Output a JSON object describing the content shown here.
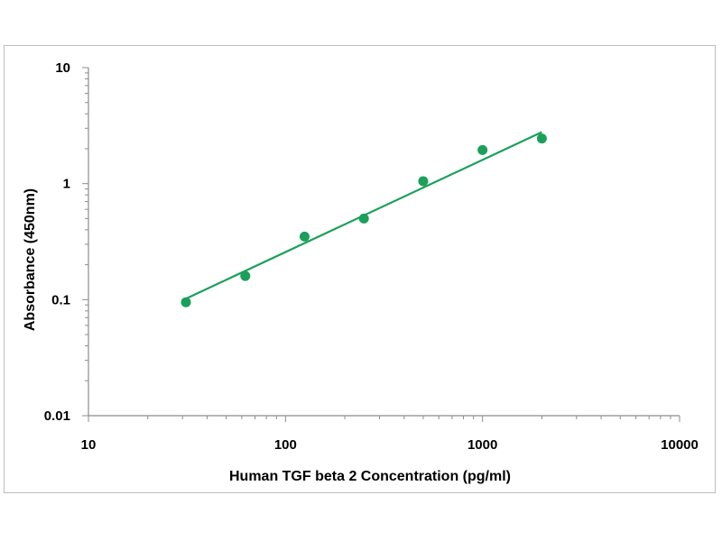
{
  "chart_data": {
    "type": "scatter",
    "title": "",
    "xlabel": "Human TGF beta 2 Concentration (pg/ml)",
    "ylabel": "Absorbance (450nm)",
    "x_scale": "log",
    "y_scale": "log",
    "xlim": [
      10,
      10000
    ],
    "ylim": [
      0.01,
      10
    ],
    "x_ticks": [
      {
        "value": 10,
        "label": "10"
      },
      {
        "value": 100,
        "label": "100"
      },
      {
        "value": 1000,
        "label": "1000"
      },
      {
        "value": 10000,
        "label": "10000"
      }
    ],
    "y_ticks": [
      {
        "value": 10,
        "label": "10"
      },
      {
        "value": 1,
        "label": "1"
      },
      {
        "value": 0.1,
        "label": "0.1"
      },
      {
        "value": 0.01,
        "label": "0.01"
      }
    ],
    "grid": false,
    "legend": "none",
    "series": [
      {
        "x": [
          31.25,
          62.5,
          125,
          250,
          500,
          1000,
          2000
        ],
        "y": [
          0.095,
          0.16,
          0.35,
          0.5,
          1.05,
          1.95,
          2.45
        ]
      }
    ],
    "fit_line": {
      "x": [
        31.25,
        2000
      ],
      "y": [
        0.102,
        2.78
      ]
    },
    "colors": {
      "marker": "#1aa05a",
      "line": "#1aa05a",
      "axis": "#8c8c8c",
      "frame": "#bdbdbd"
    }
  }
}
